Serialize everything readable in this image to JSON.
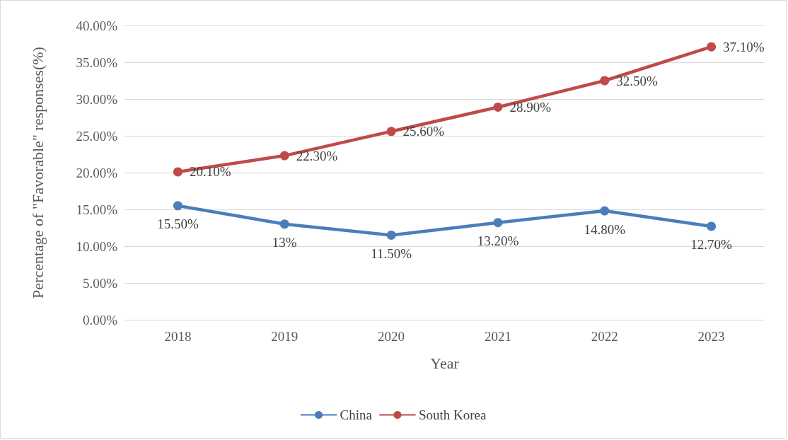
{
  "chart_data": {
    "type": "line",
    "xlabel": "Year",
    "ylabel": "Percentage of \"Favorable\" responses(%)",
    "categories": [
      "2018",
      "2019",
      "2020",
      "2021",
      "2022",
      "2023"
    ],
    "series": [
      {
        "name": "China",
        "color": "#4a7ebb",
        "values": [
          15.5,
          13,
          11.5,
          13.2,
          14.8,
          12.7
        ],
        "value_labels": [
          "15.50%",
          "13%",
          "11.50%",
          "13.20%",
          "14.80%",
          "12.70%"
        ]
      },
      {
        "name": "South Korea",
        "color": "#be4b48",
        "values": [
          20.1,
          22.3,
          25.6,
          28.9,
          32.5,
          37.1
        ],
        "value_labels": [
          "20.10%",
          "22.30%",
          "25.60%",
          "28.90%",
          "32.50%",
          "37.10%"
        ]
      }
    ],
    "ylim": [
      0,
      40
    ],
    "yticks": [
      {
        "value": 0,
        "label": "0.00%"
      },
      {
        "value": 5,
        "label": "5.00%"
      },
      {
        "value": 10,
        "label": "10.00%"
      },
      {
        "value": 15,
        "label": "15.00%"
      },
      {
        "value": 20,
        "label": "20.00%"
      },
      {
        "value": 25,
        "label": "25.00%"
      },
      {
        "value": 30,
        "label": "30.00%"
      },
      {
        "value": 35,
        "label": "35.00%"
      },
      {
        "value": 40,
        "label": "40.00%"
      }
    ],
    "grid": "y",
    "legend": "bottom",
    "marker": "circle",
    "line_style": "solid"
  }
}
